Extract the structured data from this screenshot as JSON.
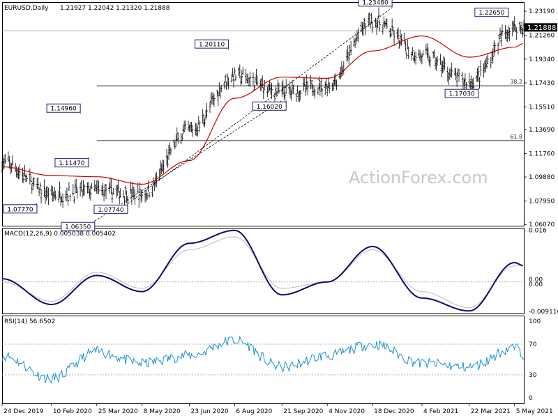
{
  "header": {
    "symbol": "EURUSD,Daily",
    "ohlc": "1.21927 1.22042 1.21320 1.21888"
  },
  "watermark": "ActionForex.com",
  "price_panel": {
    "ylim": [
      1.0597,
      1.2392
    ],
    "ticks": [
      "1.23190",
      "1.21260",
      "1.19340",
      "1.17430",
      "1.15510",
      "1.13690",
      "1.11760",
      "1.09880",
      "1.07950",
      "1.06070"
    ],
    "tick_values": [
      1.2319,
      1.2126,
      1.1934,
      1.1743,
      1.1551,
      1.1369,
      1.1176,
      1.0988,
      1.0795,
      1.0607
    ],
    "current_price": "1.21888",
    "current_value": 1.21888,
    "reference_line_value": 1.2162,
    "fib_levels": [
      {
        "label": "38.2",
        "value": 1.172,
        "x_start": "25 Mar 2020"
      },
      {
        "label": "61.8",
        "value": 1.128,
        "x_start": "25 Mar 2020"
      }
    ],
    "annotations": [
      {
        "label": "1.07770",
        "x": "26 Jan 2020",
        "y": 1.0777
      },
      {
        "label": "1.14960",
        "x": "09 Mar 2020",
        "y": 1.1496
      },
      {
        "label": "1.11470",
        "x": "17 Mar 2020",
        "y": 1.1147
      },
      {
        "label": "1.06350",
        "x": "23 Mar 2020",
        "y": 1.0635
      },
      {
        "label": "1.07740",
        "x": "24 Apr 2020",
        "y": 1.0774
      },
      {
        "label": "1.20110",
        "x": "31 Jul 2020",
        "y": 1.2011
      },
      {
        "label": "1.16020",
        "x": "25 Sep 2020",
        "y": 1.1602
      },
      {
        "label": "1.23480",
        "x": "06 Jan 2021",
        "y": 1.2348
      },
      {
        "label": "1.17030",
        "x": "31 Mar 2021",
        "y": 1.1703
      },
      {
        "label": "1.22650",
        "x": "29 Apr 2021",
        "y": 1.2265
      }
    ]
  },
  "macd_panel": {
    "title": "MACD(12,26,9) 0.005038 0.005402",
    "ylim": [
      -0.0098,
      0.0168
    ],
    "ticks": [
      "0.016",
      "0.00",
      "0.00",
      "-0.009116"
    ],
    "tick_values": [
      0.016,
      0.0001,
      -0.0001,
      -0.009116
    ]
  },
  "rsi_panel": {
    "title": "RSI(14) 56.6502",
    "ylim": [
      0,
      100
    ],
    "ticks": [
      "100",
      "70",
      "30",
      "0"
    ],
    "tick_values": [
      100,
      70,
      30,
      0
    ],
    "levels": [
      70,
      30
    ]
  },
  "x_axis": {
    "ticks": [
      "24 Dec 2019",
      "10 Feb 2020",
      "25 Mar 2020",
      "8 May 2020",
      "23 Jun 2020",
      "6 Aug 2020",
      "21 Sep 2020",
      "4 Nov 2020",
      "18 Dec 2020",
      "4 Feb 2021",
      "22 Mar 2021",
      "5 May 2021"
    ]
  },
  "chart_data": {
    "type": "line",
    "title": "EURUSD,Daily",
    "xlabel": "",
    "ylabel": "",
    "x": [
      "24 Dec 2019",
      "10 Feb 2020",
      "25 Mar 2020",
      "8 May 2020",
      "23 Jun 2020",
      "6 Aug 2020",
      "21 Sep 2020",
      "4 Nov 2020",
      "18 Dec 2020",
      "4 Feb 2021",
      "22 Mar 2021",
      "5 May 2021",
      "14 May 2021"
    ],
    "series": [
      {
        "name": "",
        "values": [
          1.11,
          1.085,
          1.088,
          1.085,
          1.136,
          1.18,
          1.167,
          1.172,
          1.224,
          1.196,
          1.175,
          1.219,
          1.219
        ]
      },
      {
        "name": "",
        "values": [
          1.107,
          1.1,
          1.099,
          1.093,
          1.112,
          1.162,
          1.179,
          1.178,
          1.2,
          1.212,
          1.195,
          1.203,
          1.206
        ]
      }
    ],
    "macd": {
      "x": [
        "24 Dec 2019",
        "10 Feb 2020",
        "25 Mar 2020",
        "8 May 2020",
        "23 Jun 2020",
        "6 Aug 2020",
        "21 Sep 2020",
        "4 Nov 2020",
        "18 Dec 2020",
        "4 Feb 2021",
        "22 Mar 2021",
        "5 May 2021",
        "14 May 2021"
      ],
      "main": [
        0.001,
        -0.007,
        0.002,
        -0.003,
        0.012,
        0.016,
        -0.004,
        0.0,
        0.011,
        -0.005,
        -0.009,
        0.006,
        0.005
      ],
      "signal": [
        0.0,
        -0.006,
        0.003,
        -0.002,
        0.01,
        0.014,
        -0.002,
        0.0,
        0.01,
        -0.003,
        -0.008,
        0.005,
        0.0054
      ]
    },
    "rsi": {
      "x": [
        "24 Dec 2019",
        "10 Feb 2020",
        "25 Mar 2020",
        "8 May 2020",
        "23 Jun 2020",
        "6 Aug 2020",
        "21 Sep 2020",
        "4 Nov 2020",
        "18 Dec 2020",
        "4 Feb 2021",
        "22 Mar 2021",
        "5 May 2021",
        "14 May 2021"
      ],
      "values": [
        55,
        25,
        60,
        45,
        55,
        75,
        40,
        55,
        70,
        45,
        40,
        65,
        57
      ]
    }
  }
}
